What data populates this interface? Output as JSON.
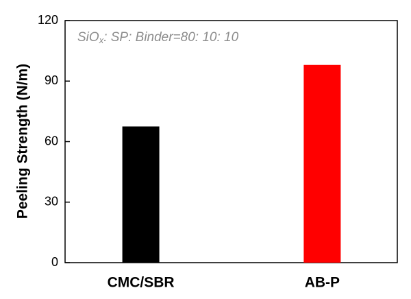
{
  "chart_data": {
    "type": "bar",
    "annotation": [
      "SiO",
      "x",
      ": SP: Binder=80: 10: 10"
    ],
    "y_label": "Peeling Strength (N/m)",
    "categories": [
      "CMC/SBR",
      "AB-P"
    ],
    "values": [
      67.5,
      98
    ],
    "colors": [
      "#000000",
      "#ff0000"
    ],
    "ylim": [
      0,
      120
    ],
    "yticks": [
      0,
      30,
      60,
      90,
      120
    ]
  }
}
